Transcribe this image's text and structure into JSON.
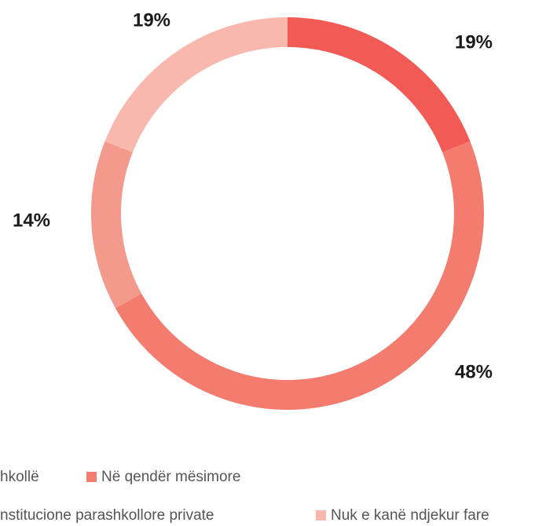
{
  "chart_data": {
    "type": "donut",
    "categories": [
      "hkollë",
      "Në qendër mësimore",
      "nstitucione parashkollore private",
      "Nuk e kanë ndjekur fare"
    ],
    "values": [
      19,
      48,
      14,
      19
    ],
    "value_labels": [
      "19%",
      "48%",
      "14%",
      "19%"
    ],
    "colors": [
      "#f25a55",
      "#f47c6e",
      "#f49a8c",
      "#f9b8ad"
    ]
  }
}
